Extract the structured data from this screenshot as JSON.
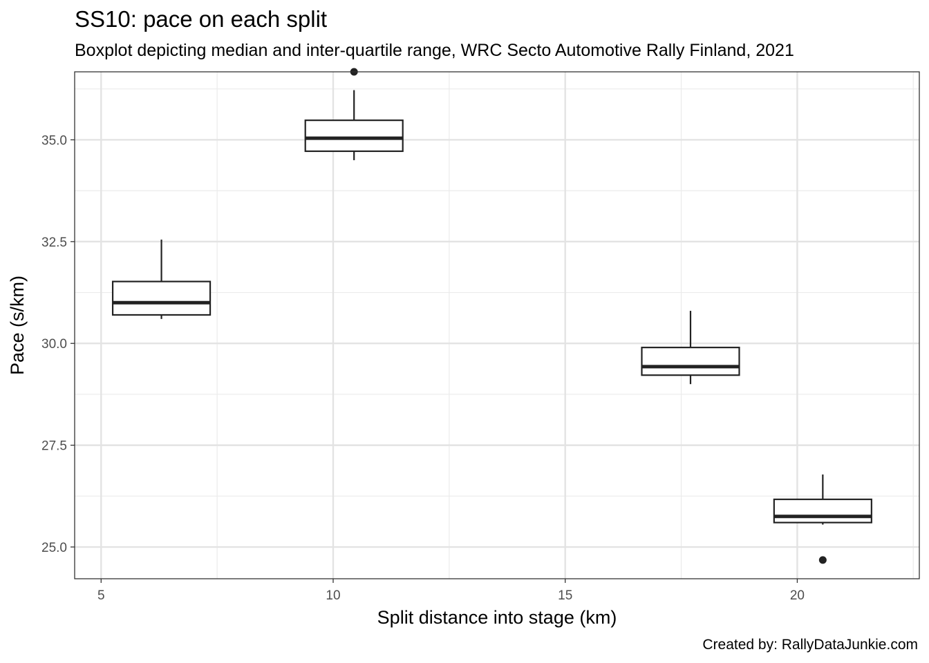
{
  "chart_data": {
    "type": "boxplot",
    "title": "SS10: pace on each split",
    "subtitle": "Boxplot depicting median and inter-quartile range, WRC Secto Automotive Rally Finland, 2021",
    "caption": "Created by: RallyDataJunkie.com",
    "xlabel": "Split distance into stage (km)",
    "ylabel": "Pace (s/km)",
    "xlim": [
      4.43,
      22.63
    ],
    "ylim": [
      24.22,
      36.67
    ],
    "xticks": [
      5,
      10,
      15,
      20
    ],
    "xtick_labels": [
      "5",
      "10",
      "15",
      "20"
    ],
    "yticks": [
      25.0,
      27.5,
      30.0,
      32.5,
      35.0
    ],
    "ytick_labels": [
      "25.0",
      "27.5",
      "30.0",
      "32.5",
      "35.0"
    ],
    "grid": true,
    "boxes": [
      {
        "x": 6.3,
        "width": 2.1,
        "min": 30.6,
        "q1": 30.7,
        "median": 31.0,
        "q3": 31.52,
        "max": 32.55,
        "outliers": []
      },
      {
        "x": 10.45,
        "width": 2.1,
        "min": 34.5,
        "q1": 34.72,
        "median": 35.04,
        "q3": 35.48,
        "max": 36.22,
        "outliers": [
          36.67
        ]
      },
      {
        "x": 17.7,
        "width": 2.1,
        "min": 29.0,
        "q1": 29.22,
        "median": 29.43,
        "q3": 29.9,
        "max": 30.8,
        "outliers": []
      },
      {
        "x": 20.55,
        "width": 2.1,
        "min": 25.55,
        "q1": 25.6,
        "median": 25.75,
        "q3": 26.17,
        "max": 26.78,
        "outliers": [
          24.68
        ]
      }
    ]
  }
}
